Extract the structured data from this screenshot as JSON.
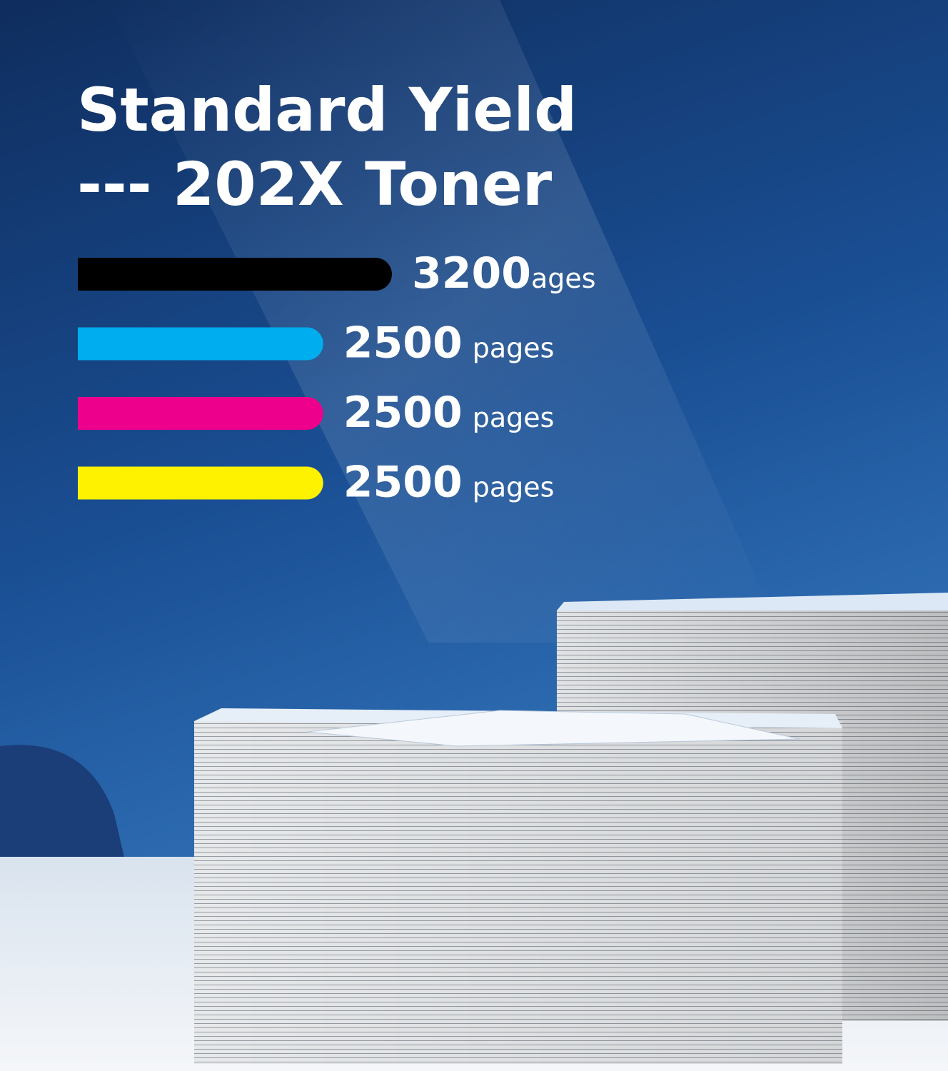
{
  "chart_data": {
    "type": "bar",
    "orientation": "horizontal",
    "title": "Standard Yield",
    "subtitle": "--- 202X Toner",
    "categories": [
      null,
      null,
      null,
      null
    ],
    "values": [
      3200,
      2500,
      2500,
      2500
    ],
    "unit_labels": [
      "ages",
      "pages",
      "pages",
      "pages"
    ],
    "colors": [
      "#000000",
      "#00aeef",
      "#ec008c",
      "#fff200"
    ]
  }
}
